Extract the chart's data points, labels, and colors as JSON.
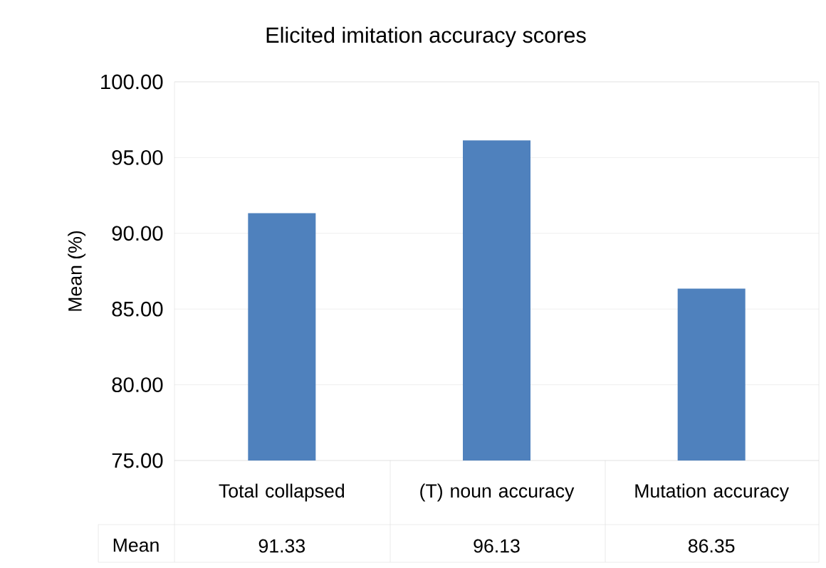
{
  "chart_data": {
    "type": "bar",
    "title": "Elicited imitation accuracy scores",
    "ylabel": "Mean (%)",
    "categories": [
      "Total collapsed",
      "(T) noun accuracy",
      "Mutation accuracy"
    ],
    "series": [
      {
        "name": "Mean",
        "color": "#4f81bd",
        "values": [
          91.33,
          96.13,
          86.35
        ]
      }
    ],
    "ylim": [
      75,
      100
    ],
    "yticks": [
      {
        "value": 75,
        "label": "75.00"
      },
      {
        "value": 80,
        "label": "80.00"
      },
      {
        "value": 85,
        "label": "85.00"
      },
      {
        "value": 90,
        "label": "90.00"
      },
      {
        "value": 95,
        "label": "95.00"
      },
      {
        "value": 100,
        "label": "100.00"
      }
    ],
    "grid": "y",
    "data_labels": true
  }
}
